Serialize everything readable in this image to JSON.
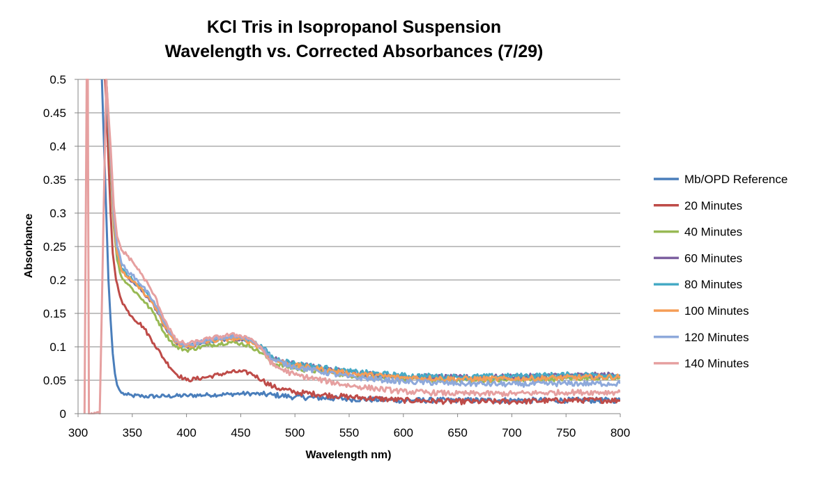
{
  "chart_data": {
    "type": "line",
    "title_lines": [
      "KCl Tris in Isopropanol Suspension",
      "Wavelength vs. Corrected Absorbances (7/29)"
    ],
    "xlabel": "Wavelength nm)",
    "ylabel": "Absorbance",
    "xlim": [
      300,
      800
    ],
    "ylim": [
      0,
      0.5
    ],
    "x_ticks": [
      300,
      350,
      400,
      450,
      500,
      550,
      600,
      650,
      700,
      750,
      800
    ],
    "x_tick_labels": [
      "300",
      "350",
      "400",
      "450",
      "500",
      "550",
      "600",
      "650",
      "700",
      "750",
      "800"
    ],
    "y_ticks": [
      0,
      0.05,
      0.1,
      0.15,
      0.2,
      0.25,
      0.3,
      0.35,
      0.4,
      0.45,
      0.5
    ],
    "y_tick_labels": [
      "0",
      "0.05",
      "0.1",
      "0.15",
      "0.2",
      "0.25",
      "0.3",
      "0.35",
      "0.4",
      "0.45",
      "0.5"
    ],
    "grid": "horizontal",
    "legend_position": "right",
    "series": [
      {
        "name": "Mb/OPD Reference",
        "color": "#4A7EBB",
        "x": [
          322,
          325,
          328,
          330,
          332,
          334,
          336,
          338,
          340,
          345,
          350,
          360,
          380,
          400,
          420,
          440,
          450,
          460,
          470,
          480,
          500,
          550,
          600,
          650,
          700,
          750,
          800
        ],
        "y": [
          0.5,
          0.35,
          0.2,
          0.14,
          0.09,
          0.06,
          0.043,
          0.036,
          0.031,
          0.028,
          0.027,
          0.026,
          0.026,
          0.027,
          0.028,
          0.029,
          0.03,
          0.03,
          0.029,
          0.028,
          0.025,
          0.022,
          0.02,
          0.02,
          0.02,
          0.02,
          0.02
        ]
      },
      {
        "name": "20 Minutes",
        "color": "#BE4B48",
        "x": [
          325,
          328,
          330,
          332,
          335,
          340,
          345,
          350,
          360,
          370,
          380,
          390,
          400,
          420,
          440,
          450,
          460,
          470,
          480,
          500,
          550,
          600,
          650,
          700,
          750,
          800
        ],
        "y": [
          0.5,
          0.38,
          0.3,
          0.24,
          0.2,
          0.17,
          0.155,
          0.145,
          0.13,
          0.105,
          0.08,
          0.06,
          0.05,
          0.055,
          0.062,
          0.063,
          0.06,
          0.05,
          0.04,
          0.032,
          0.025,
          0.02,
          0.018,
          0.018,
          0.02,
          0.02
        ]
      },
      {
        "name": "40 Minutes",
        "color": "#98B954",
        "x": [
          326,
          330,
          333,
          336,
          340,
          345,
          350,
          360,
          370,
          380,
          390,
          400,
          420,
          440,
          450,
          460,
          470,
          480,
          500,
          550,
          600,
          650,
          700,
          750,
          800
        ],
        "y": [
          0.5,
          0.37,
          0.28,
          0.23,
          0.205,
          0.195,
          0.187,
          0.17,
          0.15,
          0.12,
          0.1,
          0.095,
          0.102,
          0.107,
          0.105,
          0.1,
          0.09,
          0.075,
          0.068,
          0.058,
          0.052,
          0.05,
          0.05,
          0.053,
          0.055
        ]
      },
      {
        "name": "60 Minutes",
        "color": "#7D60A0",
        "x": [
          326,
          330,
          333,
          336,
          340,
          345,
          350,
          360,
          370,
          380,
          390,
          400,
          420,
          440,
          450,
          460,
          470,
          480,
          500,
          550,
          600,
          650,
          700,
          750,
          800
        ],
        "y": [
          0.5,
          0.38,
          0.29,
          0.24,
          0.215,
          0.205,
          0.197,
          0.182,
          0.162,
          0.13,
          0.106,
          0.1,
          0.108,
          0.113,
          0.112,
          0.108,
          0.098,
          0.082,
          0.074,
          0.062,
          0.056,
          0.054,
          0.055,
          0.057,
          0.058
        ]
      },
      {
        "name": "80 Minutes",
        "color": "#46AAC5",
        "x": [
          326,
          330,
          333,
          336,
          340,
          345,
          350,
          360,
          370,
          380,
          390,
          400,
          420,
          440,
          450,
          460,
          470,
          480,
          500,
          550,
          600,
          650,
          700,
          750,
          800
        ],
        "y": [
          0.5,
          0.38,
          0.29,
          0.24,
          0.217,
          0.207,
          0.2,
          0.185,
          0.165,
          0.132,
          0.107,
          0.101,
          0.109,
          0.114,
          0.113,
          0.109,
          0.099,
          0.083,
          0.075,
          0.063,
          0.057,
          0.055,
          0.056,
          0.058,
          0.058
        ]
      },
      {
        "name": "100 Minutes",
        "color": "#F59D56",
        "x": [
          326,
          330,
          333,
          336,
          340,
          345,
          350,
          360,
          370,
          380,
          390,
          400,
          420,
          440,
          450,
          460,
          470,
          480,
          500,
          550,
          600,
          650,
          700,
          750,
          800
        ],
        "y": [
          0.5,
          0.38,
          0.29,
          0.24,
          0.215,
          0.205,
          0.198,
          0.183,
          0.163,
          0.13,
          0.106,
          0.1,
          0.108,
          0.112,
          0.111,
          0.107,
          0.096,
          0.08,
          0.072,
          0.06,
          0.054,
          0.052,
          0.052,
          0.054,
          0.055
        ]
      },
      {
        "name": "120 Minutes",
        "color": "#8EA9DB",
        "x": [
          326,
          330,
          333,
          336,
          340,
          345,
          350,
          360,
          370,
          380,
          390,
          400,
          420,
          440,
          450,
          460,
          470,
          480,
          500,
          550,
          600,
          650,
          700,
          750,
          800
        ],
        "y": [
          0.5,
          0.39,
          0.3,
          0.25,
          0.225,
          0.215,
          0.207,
          0.19,
          0.168,
          0.135,
          0.108,
          0.102,
          0.11,
          0.115,
          0.114,
          0.11,
          0.098,
          0.08,
          0.07,
          0.055,
          0.048,
          0.045,
          0.044,
          0.045,
          0.045
        ]
      },
      {
        "name": "140 Minutes",
        "color": "#E6A0A0",
        "x": [
          306,
          308,
          309,
          310,
          320,
          326,
          330,
          333,
          336,
          340,
          345,
          350,
          360,
          370,
          380,
          390,
          400,
          420,
          440,
          450,
          460,
          470,
          480,
          500,
          550,
          600,
          650,
          700,
          750,
          800
        ],
        "y": [
          0,
          0.5,
          0.5,
          0,
          0,
          0.5,
          0.4,
          0.31,
          0.265,
          0.245,
          0.237,
          0.228,
          0.205,
          0.178,
          0.14,
          0.11,
          0.104,
          0.112,
          0.118,
          0.117,
          0.112,
          0.095,
          0.072,
          0.058,
          0.042,
          0.033,
          0.03,
          0.03,
          0.032,
          0.032
        ]
      }
    ]
  }
}
